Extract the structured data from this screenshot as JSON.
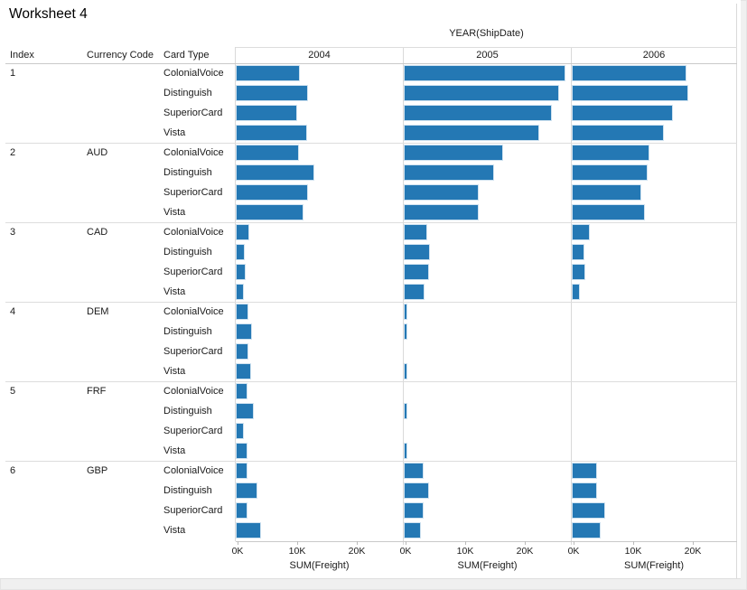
{
  "title": "Worksheet 4",
  "columns_field": "YEAR(ShipDate)",
  "row_fields": [
    "Index",
    "Currency Code",
    "Card Type"
  ],
  "colors": {
    "bar": "#2478b4",
    "grid": "#dddddd",
    "axis_line": "#c9c9c9",
    "background": "#ffffff",
    "gutter": "#f0f0f0"
  },
  "chart_data": {
    "type": "bar",
    "orientation": "horizontal",
    "title": "Worksheet 4",
    "column_header": "YEAR(ShipDate)",
    "years": [
      "2004",
      "2005",
      "2006"
    ],
    "x_axis": {
      "label": "SUM(Freight)",
      "tick_labels": [
        "0K",
        "10K",
        "20K"
      ],
      "tick_values_k": [
        0,
        10,
        20
      ],
      "range_k": [
        0,
        28
      ]
    },
    "values_unit": "K (thousands of freight)",
    "legend": "none",
    "grid": "off",
    "groups": [
      {
        "index": "1",
        "currency": "",
        "rows": [
          {
            "card": "ColonialVoice",
            "values": [
              10.6,
              27.0,
              19.0
            ]
          },
          {
            "card": "Distinguish",
            "values": [
              11.9,
              26.0,
              19.4
            ]
          },
          {
            "card": "SuperiorCard",
            "values": [
              10.0,
              24.8,
              16.8
            ]
          },
          {
            "card": "Vista",
            "values": [
              11.7,
              22.6,
              15.3
            ]
          }
        ]
      },
      {
        "index": "2",
        "currency": "AUD",
        "rows": [
          {
            "card": "ColonialVoice",
            "values": [
              10.3,
              16.5,
              12.8
            ]
          },
          {
            "card": "Distinguish",
            "values": [
              13.0,
              14.9,
              12.5
            ]
          },
          {
            "card": "SuperiorCard",
            "values": [
              11.9,
              12.4,
              11.4
            ]
          },
          {
            "card": "Vista",
            "values": [
              11.2,
              12.4,
              12.1
            ]
          }
        ]
      },
      {
        "index": "3",
        "currency": "CAD",
        "rows": [
          {
            "card": "ColonialVoice",
            "values": [
              2.0,
              3.7,
              2.7
            ]
          },
          {
            "card": "Distinguish",
            "values": [
              1.2,
              4.1,
              1.8
            ]
          },
          {
            "card": "SuperiorCard",
            "values": [
              1.4,
              4.0,
              2.0
            ]
          },
          {
            "card": "Vista",
            "values": [
              1.1,
              3.2,
              1.0
            ]
          }
        ]
      },
      {
        "index": "4",
        "currency": "DEM",
        "rows": [
          {
            "card": "ColonialVoice",
            "values": [
              1.8,
              0.2,
              0
            ]
          },
          {
            "card": "Distinguish",
            "values": [
              2.4,
              0.2,
              0
            ]
          },
          {
            "card": "SuperiorCard",
            "values": [
              1.8,
              0,
              0
            ]
          },
          {
            "card": "Vista",
            "values": [
              2.3,
              0.2,
              0
            ]
          }
        ]
      },
      {
        "index": "5",
        "currency": "FRF",
        "rows": [
          {
            "card": "ColonialVoice",
            "values": [
              1.6,
              0,
              0
            ]
          },
          {
            "card": "Distinguish",
            "values": [
              2.7,
              0.2,
              0
            ]
          },
          {
            "card": "SuperiorCard",
            "values": [
              1.0,
              0,
              0
            ]
          },
          {
            "card": "Vista",
            "values": [
              1.7,
              0.2,
              0
            ]
          }
        ]
      },
      {
        "index": "6",
        "currency": "GBP",
        "rows": [
          {
            "card": "ColonialVoice",
            "values": [
              1.6,
              3.1,
              4.0
            ]
          },
          {
            "card": "Distinguish",
            "values": [
              3.3,
              4.0,
              3.9
            ]
          },
          {
            "card": "SuperiorCard",
            "values": [
              1.6,
              3.1,
              5.3
            ]
          },
          {
            "card": "Vista",
            "values": [
              4.0,
              2.6,
              4.5
            ]
          }
        ]
      }
    ]
  }
}
